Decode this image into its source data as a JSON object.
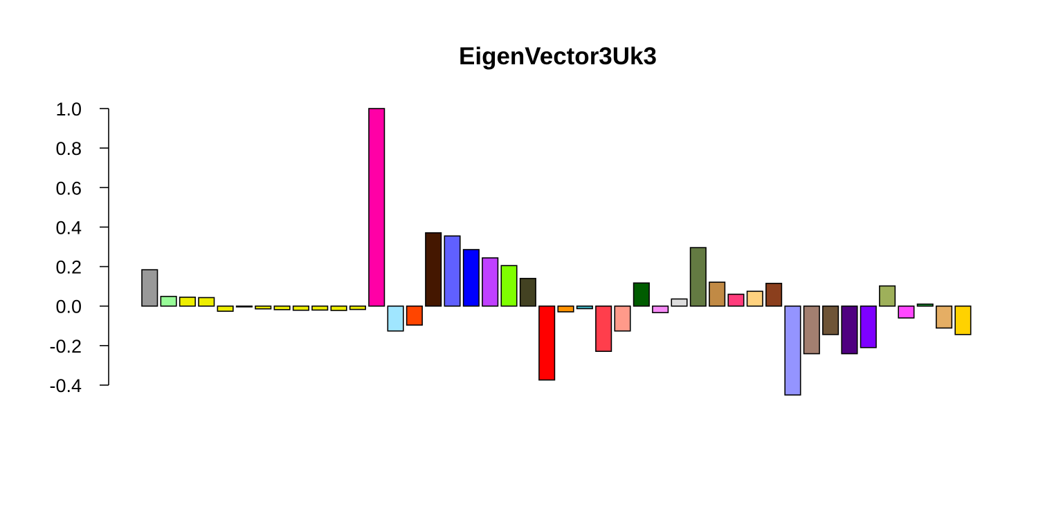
{
  "chart_data": {
    "type": "bar",
    "title": "EigenVector3Uk3",
    "xlabel": "",
    "ylabel": "",
    "ylim": [
      -0.4,
      1.0
    ],
    "yticks": [
      -0.4,
      -0.2,
      0.0,
      0.2,
      0.4,
      0.6,
      0.8,
      1.0
    ],
    "ytick_labels": [
      "-0.4",
      "-0.2",
      "0.0",
      "0.2",
      "0.4",
      "0.6",
      "0.8",
      "1.0"
    ],
    "grid": false,
    "values": [
      0.184,
      0.049,
      0.045,
      0.043,
      -0.026,
      -0.004,
      -0.014,
      -0.018,
      -0.021,
      -0.02,
      -0.022,
      -0.017,
      1.0,
      -0.126,
      -0.096,
      0.371,
      0.355,
      0.286,
      0.244,
      0.205,
      0.14,
      -0.374,
      -0.029,
      -0.013,
      -0.229,
      -0.126,
      0.117,
      -0.033,
      0.036,
      0.296,
      0.121,
      0.06,
      0.075,
      0.115,
      -0.45,
      -0.241,
      -0.144,
      -0.241,
      -0.21,
      0.102,
      -0.06,
      0.01,
      -0.111,
      -0.144
    ],
    "colors": [
      "#999999",
      "#98FB98",
      "#EEEE00",
      "#EEEE00",
      "#EEEE00",
      "#EEEE00",
      "#EEEE00",
      "#EEEE00",
      "#EEEE00",
      "#EEEE00",
      "#EEEE00",
      "#EEEE00",
      "#FF00A6",
      "#A0E6FF",
      "#FF4500",
      "#441700",
      "#6060FF",
      "#0000FF",
      "#C040FF",
      "#7FFF00",
      "#434222",
      "#FF0000",
      "#FF9300",
      "#44BBCC",
      "#FF3E4C",
      "#FF9A8A",
      "#005C00",
      "#F78CF7",
      "#DDDDDD",
      "#637A42",
      "#C18A45",
      "#FF3C7C",
      "#FFD27F",
      "#8B3F1D",
      "#9494FF",
      "#A37F70",
      "#6E5437",
      "#4F0080",
      "#7E00FF",
      "#9EB05A",
      "#FF48FF",
      "#21A83A",
      "#E5AE64",
      "#FFD200"
    ]
  }
}
